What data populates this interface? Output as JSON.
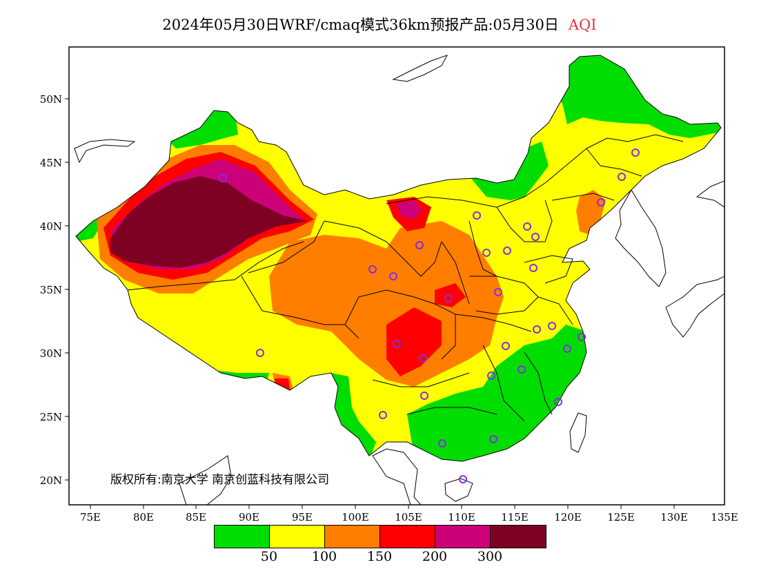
{
  "title": {
    "main": "2024年05月30日WRF/cmaq模式36km预报产品:05月30日",
    "variable": "AQI"
  },
  "copyright": "版权所有:南京大学 南京创蓝科技有限公司",
  "axes": {
    "lon_labels": [
      "75E",
      "80E",
      "85E",
      "90E",
      "95E",
      "100E",
      "105E",
      "110E",
      "115E",
      "120E",
      "125E",
      "130E",
      "135E"
    ],
    "lat_labels": [
      "50N",
      "45N",
      "40N",
      "35N",
      "30N",
      "25N",
      "20N"
    ]
  },
  "legend": {
    "colors": [
      "#00dd00",
      "#ffff00",
      "#ff7e00",
      "#ff0000",
      "#cc0077",
      "#7e0023"
    ],
    "labels": [
      "50",
      "100",
      "150",
      "200",
      "300"
    ]
  },
  "colors": {
    "good": "#00dd00",
    "moderate": "#ffff00",
    "usg": "#ff7e00",
    "unhealthy": "#ff0000",
    "very_unhealthy": "#cc0077",
    "hazardous": "#7e0023",
    "station_marker": "#8a2be2"
  }
}
